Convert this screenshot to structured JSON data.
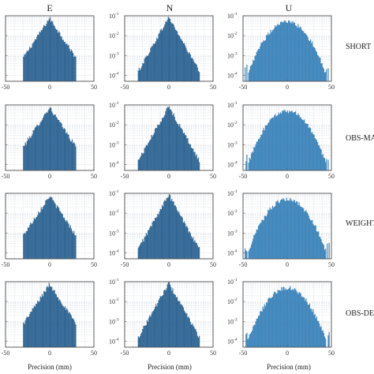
{
  "chart_data": {
    "type": "bar",
    "column_titles": [
      "E",
      "N",
      "U"
    ],
    "row_labels": [
      "SHORT",
      "OBS-MA",
      "WEIGHT",
      "OBS-DE"
    ],
    "xlabel": "Precision (mm)",
    "xticks": [
      -50,
      0,
      50
    ],
    "xlim": [
      -50,
      50
    ],
    "y_scale": "log",
    "ylim": [
      5e-05,
      0.1
    ],
    "yticks": [
      {
        "mant": "10",
        "exp": "-1",
        "value": 0.1
      },
      {
        "mant": "10",
        "exp": "-2",
        "value": 0.01
      },
      {
        "mant": "10",
        "exp": "-3",
        "value": 0.001
      },
      {
        "mant": "10",
        "exp": "-4",
        "value": 0.0001
      }
    ],
    "grid": true,
    "colors": {
      "E": "#2a6496",
      "N": "#2a6496",
      "U": "#3d8fcc"
    },
    "bin_width_mm": 1,
    "note_bins": "approximate probability density per 1 mm bin, read from the figure",
    "series_params": [
      {
        "column": "E",
        "peak": 0.075,
        "scale_mm": 6.5,
        "tail_range_mm": 30
      },
      {
        "column": "N",
        "peak": 0.085,
        "scale_mm": 5.5,
        "tail_range_mm": 35
      },
      {
        "column": "U",
        "peak": 0.05,
        "scale_mm": 10,
        "tail_range_mm": 48
      }
    ]
  }
}
